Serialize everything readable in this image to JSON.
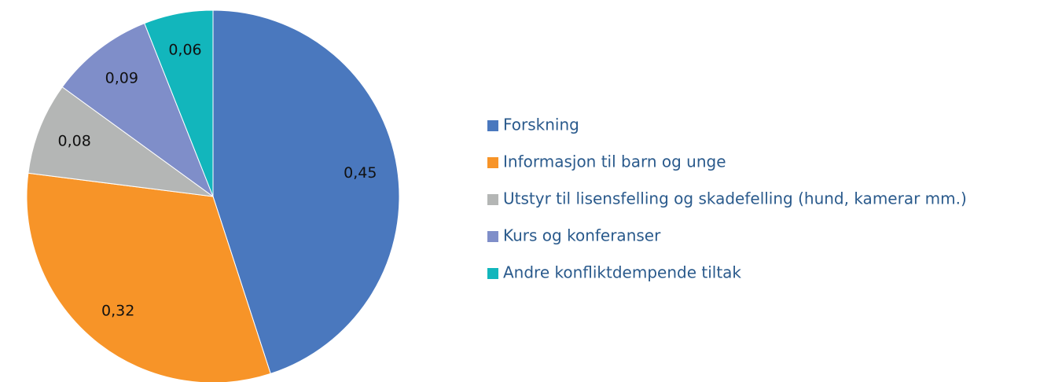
{
  "chart_data": {
    "type": "pie",
    "categories": [
      "Forskning",
      "Informasjon til barn og unge",
      "Utstyr til lisensfelling og skadefelling (hund, kamerar mm.)",
      "Kurs og konferanser",
      "Andre konfliktdempende tiltak"
    ],
    "values": [
      0.45,
      0.32,
      0.08,
      0.09,
      0.06
    ],
    "value_labels": [
      "0,45",
      "0,32",
      "0,08",
      "0,09",
      "0,06"
    ],
    "colors": [
      "#4a78be",
      "#f79428",
      "#b4b6b5",
      "#7f8ec9",
      "#12b6bc"
    ],
    "legend": "right"
  }
}
